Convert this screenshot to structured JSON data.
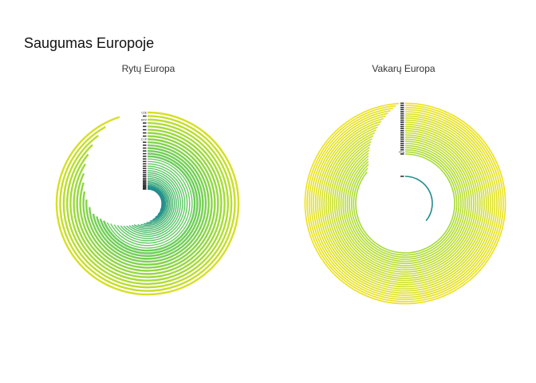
{
  "chart_data": {
    "type": "radial-bar",
    "title": "Saugumas Europoje",
    "colors": {
      "low": "#21908c",
      "mid": "#5ec962",
      "high": "#d9e021",
      "top": "#f2e21b"
    },
    "panels": [
      {
        "title": "Rytų Europa",
        "bars": [
          {
            "label": "",
            "value": 0.28
          },
          {
            "label": "",
            "value": 0.33
          },
          {
            "label": "",
            "value": 0.38
          },
          {
            "label": "",
            "value": 0.42
          },
          {
            "label": "",
            "value": 0.45
          },
          {
            "label": "",
            "value": 0.48
          },
          {
            "label": "",
            "value": 0.51
          },
          {
            "label": "",
            "value": 0.53
          },
          {
            "label": "",
            "value": 0.55
          },
          {
            "label": "",
            "value": 0.57
          },
          {
            "label": "",
            "value": 0.59
          },
          {
            "label": "",
            "value": 0.6
          },
          {
            "label": "",
            "value": 0.61
          },
          {
            "label": "",
            "value": 0.62
          },
          {
            "label": "",
            "value": 0.63
          },
          {
            "label": "",
            "value": 0.64
          },
          {
            "label": "",
            "value": 0.65
          },
          {
            "label": "",
            "value": 0.66
          },
          {
            "label": "",
            "value": 0.67
          },
          {
            "label": "",
            "value": 0.68
          },
          {
            "label": "",
            "value": 0.69
          },
          {
            "label": "",
            "value": 0.7
          },
          {
            "label": "",
            "value": 0.71
          },
          {
            "label": "",
            "value": 0.72
          },
          {
            "label": "",
            "value": 0.74
          },
          {
            "label": "",
            "value": 0.76
          },
          {
            "label": "CYP",
            "value": 0.78
          },
          {
            "label": "",
            "value": 0.8
          },
          {
            "label": "",
            "value": 0.82
          },
          {
            "label": "",
            "value": 0.84
          },
          {
            "label": "",
            "value": 0.86
          },
          {
            "label": "",
            "value": 0.88
          },
          {
            "label": "HRV",
            "value": 0.9
          },
          {
            "label": "",
            "value": 0.92
          },
          {
            "label": "CZE",
            "value": 0.95
          }
        ]
      },
      {
        "title": "Vakarų Europa",
        "bars": [
          {
            "label": "",
            "value": 0.36
          },
          {
            "label": "",
            "value": 0.86
          },
          {
            "label": "FRA",
            "value": 0.87
          },
          {
            "label": "",
            "value": 0.88
          },
          {
            "label": "",
            "value": 0.885
          },
          {
            "label": "",
            "value": 0.89
          },
          {
            "label": "",
            "value": 0.895
          },
          {
            "label": "",
            "value": 0.9
          },
          {
            "label": "",
            "value": 0.905
          },
          {
            "label": "",
            "value": 0.91
          },
          {
            "label": "",
            "value": 0.915
          },
          {
            "label": "",
            "value": 0.92
          },
          {
            "label": "",
            "value": 0.925
          },
          {
            "label": "",
            "value": 0.93
          },
          {
            "label": "",
            "value": 0.935
          },
          {
            "label": "",
            "value": 0.94
          },
          {
            "label": "",
            "value": 0.945
          },
          {
            "label": "",
            "value": 0.95
          },
          {
            "label": "",
            "value": 0.955
          },
          {
            "label": "",
            "value": 0.96
          },
          {
            "label": "",
            "value": 0.965
          },
          {
            "label": "",
            "value": 0.97
          },
          {
            "label": "",
            "value": 0.975
          },
          {
            "label": "",
            "value": 0.98
          },
          {
            "label": "",
            "value": 0.985
          },
          {
            "label": "",
            "value": 0.99
          }
        ]
      }
    ],
    "legend": "none",
    "grid": false
  }
}
